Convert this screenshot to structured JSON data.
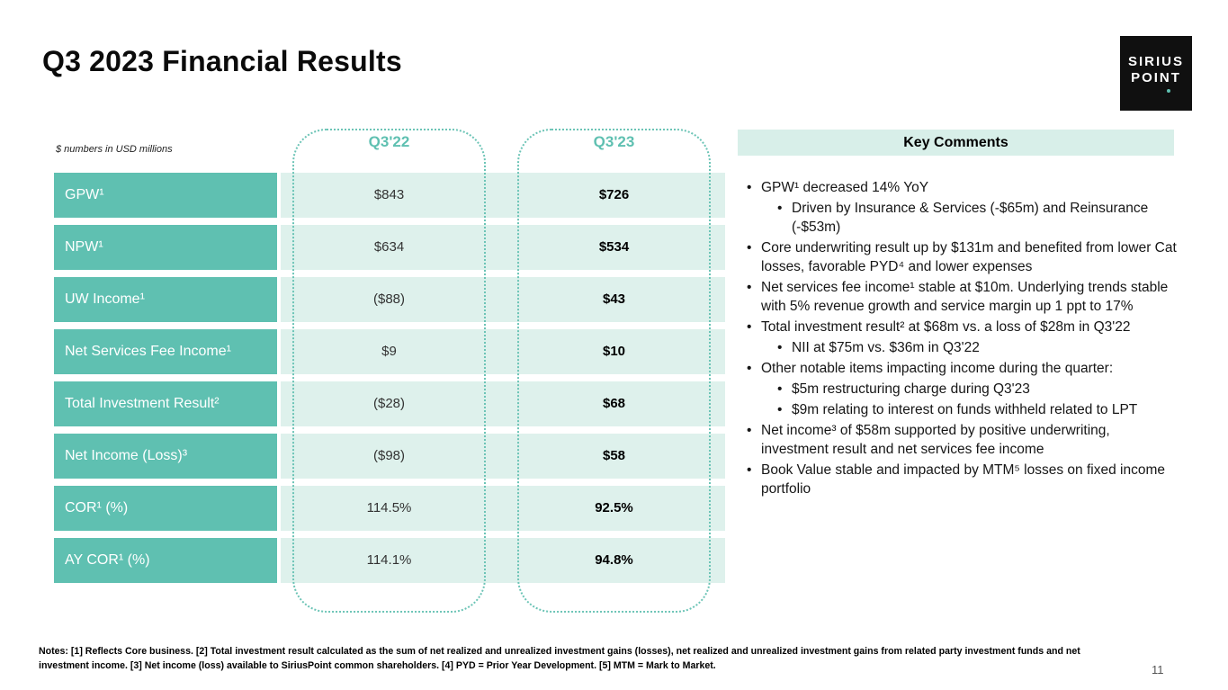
{
  "slide": {
    "title": "Q3 2023 Financial Results",
    "page_number": "11"
  },
  "logo": {
    "line1": "SIRIUS",
    "line2": "POINT"
  },
  "table": {
    "unit_note": "$ numbers in USD millions",
    "columns": [
      "Q3'22",
      "Q3'23"
    ],
    "rows": [
      {
        "label": "GPW¹",
        "q322": "$843",
        "q323": "$726"
      },
      {
        "label": "NPW¹",
        "q322": "$634",
        "q323": "$534"
      },
      {
        "label": "UW Income¹",
        "q322": "($88)",
        "q323": "$43"
      },
      {
        "label": "Net Services Fee Income¹",
        "q322": "$9",
        "q323": "$10"
      },
      {
        "label": "Total Investment Result²",
        "q322": "($28)",
        "q323": "$68"
      },
      {
        "label": "Net Income (Loss)³",
        "q322": "($98)",
        "q323": "$58"
      },
      {
        "label": "COR¹ (%)",
        "q322": "114.5%",
        "q323": "92.5%"
      },
      {
        "label": "AY COR¹ (%)",
        "q322": "114.1%",
        "q323": "94.8%"
      }
    ]
  },
  "comments": {
    "header": "Key Comments",
    "items": [
      {
        "level": 0,
        "text": "GPW¹ decreased 14% YoY"
      },
      {
        "level": 1,
        "text": "Driven by Insurance & Services (-$65m) and Reinsurance (-$53m)"
      },
      {
        "level": 0,
        "text": "Core underwriting result up by $131m and benefited from lower Cat losses, favorable PYD⁴ and lower expenses"
      },
      {
        "level": 0,
        "text": "Net services fee income¹ stable at $10m. Underlying trends stable with 5% revenue growth and service margin up 1 ppt to 17%"
      },
      {
        "level": 0,
        "text": "Total investment result² at $68m vs. a loss of $28m in Q3'22"
      },
      {
        "level": 1,
        "text": "NII at $75m vs. $36m in Q3'22"
      },
      {
        "level": 0,
        "text": "Other notable items impacting income during the quarter:"
      },
      {
        "level": 1,
        "text": "$5m restructuring charge during Q3'23"
      },
      {
        "level": 1,
        "text": "$9m relating to interest on funds withheld related to LPT"
      },
      {
        "level": 0,
        "text": "Net income³ of $58m supported by positive underwriting, investment result and net services fee income"
      },
      {
        "level": 0,
        "text": "Book Value stable and impacted by MTM⁵ losses on fixed income portfolio"
      }
    ]
  },
  "footer": {
    "notes": "Notes: [1] Reflects Core business. [2] Total investment result calculated as the sum of net realized and unrealized investment gains (losses), net realized and unrealized investment gains from related party investment funds and net investment income. [3] Net income (loss) available to SiriusPoint common shareholders. [4] PYD = Prior Year Development. [5] MTM = Mark to Market."
  },
  "colors": {
    "teal": "#5fc0b1",
    "light_teal": "#def1ec",
    "comments_header_bg": "#d8efe9",
    "logo_bg": "#101010"
  }
}
